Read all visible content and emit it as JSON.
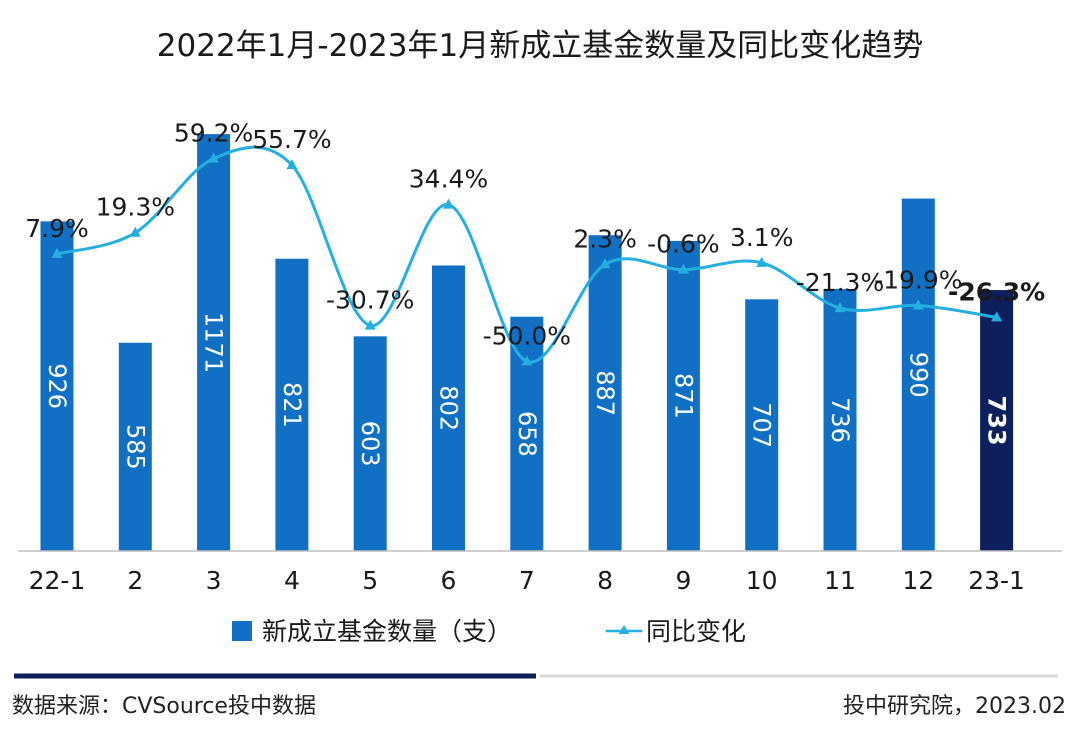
{
  "chart_data": {
    "type": "bar",
    "title": "2022年1月-2023年1月新成立基金数量及同比变化趋势",
    "categories": [
      "22-1",
      "2",
      "3",
      "4",
      "5",
      "6",
      "7",
      "8",
      "9",
      "10",
      "11",
      "12",
      "23-1"
    ],
    "series": [
      {
        "name": "新成立基金数量（支）",
        "type": "bar",
        "values": [
          926,
          585,
          1171,
          821,
          603,
          802,
          658,
          887,
          871,
          707,
          736,
          990,
          733
        ],
        "value_labels": [
          "926",
          "585",
          "1171",
          "821",
          "603",
          "802",
          "658",
          "887",
          "871",
          "707",
          "736",
          "990",
          "733"
        ],
        "highlight_index": 12,
        "color": "#1170c4",
        "highlight_color": "#0d1f5c"
      },
      {
        "name": "同比变化",
        "type": "line",
        "values": [
          7.9,
          19.3,
          59.2,
          55.7,
          -30.7,
          34.4,
          -50.0,
          2.3,
          -0.6,
          3.1,
          -21.3,
          -19.9,
          -26.3
        ],
        "value_labels": [
          "7.9%",
          "19.3%",
          "59.2%",
          "55.7%",
          "-30.7%",
          "34.4%",
          "-50.0%",
          "2.3%",
          "-0.6%",
          "3.1%",
          "-21.3%",
          "-19.9%",
          "-26.3%"
        ],
        "color": "#25afe0"
      }
    ],
    "ylim": [
      0,
      1250
    ],
    "y2lim": [
      -60,
      80
    ],
    "legend_position": "bottom",
    "grid": false
  },
  "footer": {
    "source": "数据来源：CVSource投中数据",
    "credit": "投中研究院，2023.02"
  }
}
